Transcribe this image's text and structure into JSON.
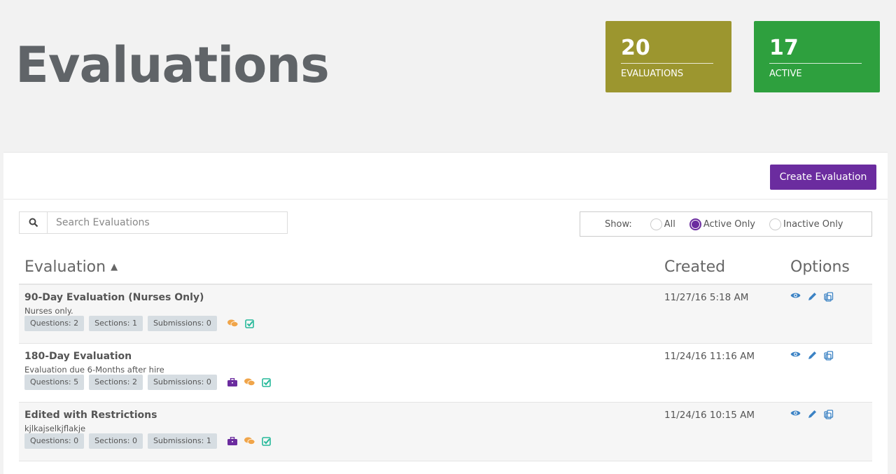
{
  "page_title": "Evaluations",
  "stats": [
    {
      "value": "20",
      "label": "EVALUATIONS",
      "color": "#9c962f"
    },
    {
      "value": "17",
      "label": "ACTIVE",
      "color": "#2ea03e"
    }
  ],
  "toolbar": {
    "create_label": "Create Evaluation"
  },
  "search": {
    "placeholder": "Search Evaluations",
    "value": ""
  },
  "filter": {
    "label": "Show:",
    "options": [
      "All",
      "Active Only",
      "Inactive Only"
    ],
    "selected": "Active Only"
  },
  "table": {
    "headers": {
      "evaluation": "Evaluation",
      "created": "Created",
      "options": "Options"
    },
    "sort": "evaluation-ascending",
    "rows": [
      {
        "name": "90-Day Evaluation (Nurses Only)",
        "description": "Nurses only.",
        "questions": "Questions: 2",
        "sections": "Sections: 1",
        "submissions": "Submissions: 0",
        "created": "11/27/16 5:18 AM",
        "icons": [
          "comments-icon",
          "check-square-icon"
        ]
      },
      {
        "name": "180-Day Evaluation",
        "description": "Evaluation due 6-Months after hire",
        "questions": "Questions: 5",
        "sections": "Sections: 2",
        "submissions": "Submissions: 0",
        "created": "11/24/16 11:16 AM",
        "icons": [
          "briefcase-icon",
          "comments-icon",
          "check-square-icon"
        ]
      },
      {
        "name": "Edited with Restrictions",
        "description": "kjlkajselkjflakje",
        "questions": "Questions: 0",
        "sections": "Sections: 0",
        "submissions": "Submissions: 1",
        "created": "11/24/16 10:15 AM",
        "icons": [
          "briefcase-icon",
          "comments-icon",
          "check-square-icon"
        ]
      }
    ]
  },
  "colors": {
    "accent": "#6b2c9f",
    "link": "#3b82c4",
    "comments": "#f0a54a",
    "check": "#26b99a"
  }
}
